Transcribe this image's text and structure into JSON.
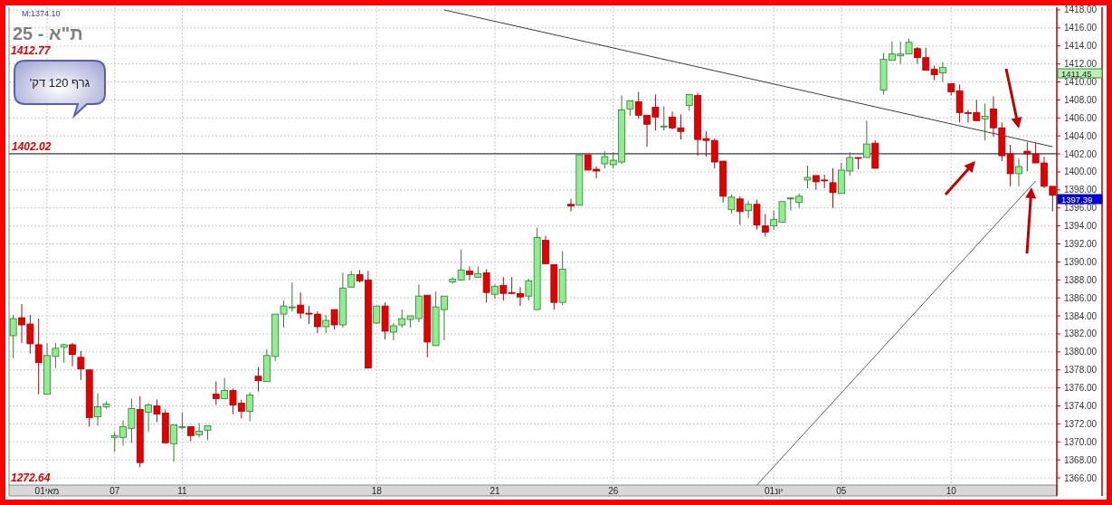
{
  "chart_data": {
    "type": "candlestick",
    "title": "ת\"א - 25",
    "categories": [
      null,
      null,
      null,
      null,
      "01מאי",
      null,
      null,
      null,
      null,
      null,
      null,
      null,
      "07",
      null,
      null,
      null,
      null,
      null,
      null,
      null,
      "11",
      null,
      null,
      null,
      null,
      null,
      null,
      null,
      null,
      null,
      null,
      null,
      null,
      null,
      null,
      null,
      null,
      null,
      null,
      null,
      null,
      null,
      null,
      "18",
      null,
      null,
      null,
      null,
      null,
      null,
      null,
      null,
      null,
      null,
      null,
      null,
      null,
      "21",
      null,
      null,
      null,
      null,
      null,
      null,
      null,
      null,
      null,
      null,
      null,
      null,
      null,
      "26",
      null,
      null,
      null,
      null,
      null,
      null,
      null,
      null,
      null,
      null,
      null,
      null,
      null,
      null,
      null,
      null,
      null,
      null,
      "01יונ",
      null,
      null,
      null,
      null,
      null,
      null,
      null,
      "05",
      null,
      null,
      null,
      null,
      null,
      null,
      null,
      null,
      null,
      null,
      null,
      null,
      "10",
      null,
      null,
      null,
      null,
      null,
      null,
      null,
      null,
      null,
      null,
      null,
      null
    ],
    "ohlc": [
      [
        1381.8,
        1384.1,
        1379.3,
        1383.7
      ],
      [
        1383.8,
        1385.3,
        1381.0,
        1383.0
      ],
      [
        1383.1,
        1384.1,
        1379.8,
        1380.9
      ],
      [
        1380.8,
        1383.7,
        1375.3,
        1378.8
      ],
      [
        1375.3,
        1381.0,
        1375.3,
        1379.6
      ],
      [
        1379.5,
        1381.0,
        1378.2,
        1380.4
      ],
      [
        1380.5,
        1380.9,
        1378.8,
        1380.8
      ],
      [
        1380.8,
        1381.0,
        1378.4,
        1379.7
      ],
      [
        1379.4,
        1380.1,
        1376.9,
        1378.1
      ],
      [
        1378.0,
        1378.0,
        1371.7,
        1372.7
      ],
      [
        1372.8,
        1375.4,
        1371.8,
        1373.9
      ],
      [
        1373.9,
        1374.5,
        1373.7,
        1374.2
      ],
      [
        1370.5,
        1371.1,
        1368.9,
        1370.7
      ],
      [
        1370.5,
        1372.4,
        1369.6,
        1371.7
      ],
      [
        1371.5,
        1374.8,
        1369.9,
        1373.7
      ],
      [
        1373.6,
        1375.1,
        1367.2,
        1367.7
      ],
      [
        1373.3,
        1374.3,
        1371.1,
        1374.1
      ],
      [
        1374.0,
        1374.7,
        1372.2,
        1373.1
      ],
      [
        1373.2,
        1373.6,
        1369.8,
        1369.9
      ],
      [
        1369.8,
        1371.9,
        1367.8,
        1371.9
      ],
      [
        1371.6,
        1373.3,
        1371.4,
        1371.7
      ],
      [
        1371.7,
        1371.7,
        1370.1,
        1370.7
      ],
      [
        1370.8,
        1372.1,
        1370.5,
        1371.2
      ],
      [
        1371.3,
        1371.8,
        1370.2,
        1371.8
      ],
      [
        1375.3,
        1376.7,
        1374.1,
        1374.8
      ],
      [
        1374.8,
        1377.1,
        1374.8,
        1375.7
      ],
      [
        1375.7,
        1375.9,
        1373.1,
        1374.1
      ],
      [
        1374.3,
        1374.7,
        1372.6,
        1373.4
      ],
      [
        1373.4,
        1375.5,
        1372.3,
        1375.2
      ],
      [
        1377.3,
        1378.3,
        1375.6,
        1376.8
      ],
      [
        1376.7,
        1380.3,
        1376.7,
        1379.6
      ],
      [
        1379.5,
        1384.2,
        1379.0,
        1384.2
      ],
      [
        1384.2,
        1385.7,
        1382.7,
        1385.1
      ],
      [
        1385.0,
        1387.7,
        1384.5,
        1385.0
      ],
      [
        1385.2,
        1386.6,
        1383.7,
        1384.3
      ],
      [
        1384.3,
        1385.1,
        1383.1,
        1384.2
      ],
      [
        1384.2,
        1384.5,
        1382.1,
        1382.8
      ],
      [
        1382.8,
        1384.1,
        1382.1,
        1383.5
      ],
      [
        1384.7,
        1384.7,
        1382.5,
        1383.0
      ],
      [
        1383.0,
        1388.8,
        1382.7,
        1387.1
      ],
      [
        1387.2,
        1389.0,
        1387.2,
        1388.6
      ],
      [
        1388.6,
        1389.1,
        1387.7,
        1387.9
      ],
      [
        1388.0,
        1389.0,
        1378.2,
        1378.2
      ],
      [
        1383.2,
        1385.1,
        1383.1,
        1385.1
      ],
      [
        1385.1,
        1385.5,
        1381.4,
        1382.3
      ],
      [
        1382.2,
        1383.2,
        1381.3,
        1382.9
      ],
      [
        1383.0,
        1384.7,
        1382.7,
        1383.7
      ],
      [
        1383.6,
        1384.0,
        1382.7,
        1384.0
      ],
      [
        1383.7,
        1387.5,
        1383.3,
        1386.2
      ],
      [
        1386.3,
        1386.3,
        1379.4,
        1381.1
      ],
      [
        1380.7,
        1386.7,
        1380.7,
        1385.0
      ],
      [
        1384.7,
        1386.2,
        1381.3,
        1386.2
      ],
      [
        1387.8,
        1388.3,
        1387.6,
        1388.1
      ],
      [
        1388.0,
        1391.4,
        1388.0,
        1389.1
      ],
      [
        1389.0,
        1389.5,
        1388.0,
        1388.6
      ],
      [
        1388.3,
        1389.5,
        1388.3,
        1388.7
      ],
      [
        1388.8,
        1389.2,
        1385.5,
        1386.6
      ],
      [
        1386.4,
        1387.5,
        1385.9,
        1387.3
      ],
      [
        1387.4,
        1388.3,
        1385.7,
        1386.5
      ],
      [
        1386.6,
        1388.3,
        1386.4,
        1386.5
      ],
      [
        1386.5,
        1387.2,
        1385.1,
        1386.1
      ],
      [
        1386.2,
        1388.1,
        1385.7,
        1387.9
      ],
      [
        1384.7,
        1393.8,
        1384.7,
        1392.7
      ],
      [
        1392.4,
        1392.9,
        1389.8,
        1389.8
      ],
      [
        1389.7,
        1389.7,
        1384.7,
        1385.5
      ],
      [
        1385.5,
        1391.2,
        1385.2,
        1389.2
      ],
      [
        1396.4,
        1397.0,
        1395.6,
        1396.2
      ],
      [
        1396.3,
        1401.9,
        1396.3,
        1401.9
      ],
      [
        1401.9,
        1401.9,
        1400.2,
        1400.2
      ],
      [
        1400.3,
        1400.6,
        1399.3,
        1400.1
      ],
      [
        1400.9,
        1402.3,
        1400.4,
        1401.7
      ],
      [
        1400.8,
        1402.2,
        1400.4,
        1401.3
      ],
      [
        1401.1,
        1408.5,
        1400.9,
        1406.9
      ],
      [
        1407.0,
        1407.9,
        1406.2,
        1407.9
      ],
      [
        1407.8,
        1408.9,
        1405.9,
        1406.3
      ],
      [
        1406.3,
        1406.3,
        1402.8,
        1405.3
      ],
      [
        1407.2,
        1408.6,
        1404.6,
        1406.1
      ],
      [
        1405.0,
        1407.3,
        1404.6,
        1405.1
      ],
      [
        1406.1,
        1406.7,
        1404.7,
        1404.9
      ],
      [
        1404.9,
        1406.4,
        1403.6,
        1404.5
      ],
      [
        1407.4,
        1408.6,
        1406.8,
        1408.6
      ],
      [
        1408.5,
        1408.8,
        1401.8,
        1403.6
      ],
      [
        1403.7,
        1404.5,
        1401.7,
        1403.5
      ],
      [
        1403.5,
        1403.7,
        1400.4,
        1401.1
      ],
      [
        1401.2,
        1401.2,
        1396.6,
        1397.3
      ],
      [
        1395.8,
        1397.5,
        1395.4,
        1397.2
      ],
      [
        1397.0,
        1397.3,
        1394.1,
        1395.6
      ],
      [
        1395.7,
        1396.8,
        1394.9,
        1396.4
      ],
      [
        1396.4,
        1396.9,
        1393.6,
        1394.1
      ],
      [
        1394.0,
        1395.3,
        1392.8,
        1393.3
      ],
      [
        1394.0,
        1395.7,
        1393.6,
        1394.7
      ],
      [
        1394.4,
        1396.7,
        1394.4,
        1396.7
      ],
      [
        1397.0,
        1397.2,
        1395.7,
        1397.1
      ],
      [
        1396.6,
        1397.6,
        1396.0,
        1397.3
      ],
      [
        1399.1,
        1400.7,
        1398.2,
        1399.4
      ],
      [
        1399.6,
        1399.6,
        1398.0,
        1398.9
      ],
      [
        1399.1,
        1399.7,
        1398.2,
        1399.0
      ],
      [
        1398.8,
        1400.4,
        1396.0,
        1397.7
      ],
      [
        1397.6,
        1401.0,
        1397.6,
        1400.2
      ],
      [
        1400.1,
        1402.2,
        1399.6,
        1401.6
      ],
      [
        1401.6,
        1401.6,
        1400.3,
        1401.5
      ],
      [
        1401.6,
        1405.7,
        1401.6,
        1403.1
      ],
      [
        1403.2,
        1403.5,
        1400.4,
        1400.4
      ],
      [
        1409.1,
        1413.2,
        1408.6,
        1412.5
      ],
      [
        1412.4,
        1414.5,
        1412.4,
        1413.1
      ],
      [
        1412.9,
        1414.5,
        1412.0,
        1413.1
      ],
      [
        1413.1,
        1414.8,
        1413.1,
        1414.4
      ],
      [
        1413.7,
        1413.9,
        1412.0,
        1412.7
      ],
      [
        1412.7,
        1413.8,
        1411.3,
        1411.3
      ],
      [
        1411.4,
        1411.8,
        1410.2,
        1410.8
      ],
      [
        1411.0,
        1412.2,
        1410.0,
        1411.6
      ],
      [
        1409.8,
        1409.8,
        1408.5,
        1408.9
      ],
      [
        1409.0,
        1409.7,
        1405.5,
        1406.6
      ],
      [
        1406.6,
        1406.9,
        1405.5,
        1406.5
      ],
      [
        1406.6,
        1408.0,
        1405.7,
        1405.7
      ],
      [
        1405.9,
        1407.6,
        1403.5,
        1406.2
      ],
      [
        1407.0,
        1408.4,
        1403.9,
        1404.9
      ],
      [
        1404.9,
        1405.5,
        1401.2,
        1401.8
      ],
      [
        1402.0,
        1403.0,
        1398.4,
        1399.8
      ],
      [
        1399.8,
        1401.5,
        1398.4,
        1400.6
      ],
      [
        1402.3,
        1403.3,
        1400.1,
        1402.0
      ],
      [
        1402.0,
        1403.2,
        1401.0,
        1401.0
      ],
      [
        1401.0,
        1401.7,
        1398.2,
        1398.4
      ],
      [
        1398.4,
        1398.4,
        1395.6,
        1397.4
      ]
    ],
    "series": [
      {
        "type": "line",
        "values": [
          null,
          null,
          null,
          null,
          null,
          null,
          null,
          null,
          null,
          null,
          null,
          null,
          null,
          null,
          null,
          null,
          null,
          null,
          null,
          null,
          null,
          null,
          null,
          null,
          null,
          null,
          null,
          null,
          null,
          null,
          null,
          null,
          null,
          null,
          null,
          null,
          null,
          null,
          null,
          null,
          null,
          null,
          null,
          null,
          null,
          null,
          null,
          null,
          null,
          null,
          null,
          1418.0,
          null,
          null,
          null,
          null,
          null,
          null,
          null,
          null,
          null,
          null,
          null,
          null,
          null,
          null,
          null,
          null,
          null,
          null,
          null,
          null,
          null,
          null,
          null,
          null,
          null,
          null,
          null,
          null,
          null,
          null,
          null,
          null,
          null,
          null,
          null,
          null,
          null,
          null,
          null,
          null,
          null,
          null,
          null,
          null,
          null,
          null,
          null,
          null,
          null,
          null,
          null,
          null,
          null,
          null,
          null,
          null,
          null,
          null,
          null,
          null,
          null,
          null,
          null,
          null,
          null,
          null,
          null,
          null,
          null,
          null,
          null,
          1402.8
        ],
        "color": "#3c3c3c"
      },
      {
        "type": "line",
        "values": [
          null,
          null,
          null,
          null,
          null,
          null,
          null,
          null,
          null,
          null,
          null,
          null,
          null,
          null,
          null,
          null,
          null,
          null,
          null,
          null,
          null,
          null,
          null,
          null,
          null,
          null,
          null,
          null,
          null,
          null,
          null,
          null,
          null,
          null,
          null,
          null,
          null,
          null,
          null,
          null,
          null,
          null,
          null,
          null,
          null,
          null,
          null,
          null,
          null,
          null,
          null,
          null,
          null,
          null,
          null,
          null,
          null,
          null,
          null,
          null,
          null,
          null,
          null,
          null,
          null,
          null,
          null,
          null,
          null,
          null,
          null,
          null,
          null,
          null,
          null,
          null,
          null,
          null,
          null,
          null,
          null,
          null,
          null,
          null,
          null,
          null,
          null,
          null,
          1365.2,
          null,
          null,
          null,
          null,
          null,
          null,
          null,
          null,
          null,
          null,
          null,
          null,
          null,
          null,
          null,
          null,
          null,
          null,
          null,
          null,
          null,
          null,
          null,
          null,
          null,
          null,
          null,
          null,
          null,
          null,
          null,
          null,
          1399.0,
          null,
          null
        ],
        "color": "#5a5a5a"
      }
    ],
    "ref_lines": [
      {
        "axis": "y",
        "value": 1402.02,
        "label": "1402.02",
        "color": "#404040"
      }
    ],
    "annotations": [
      "M:1374.10",
      "1412.77",
      "1272.64",
      "גרף 120 דק'",
      "1411.45",
      "1397.39"
    ],
    "ylim": [
      1365.2,
      1418.3
    ],
    "yticks": [
      {
        "value": 1366,
        "label": "1366.00"
      },
      {
        "value": 1368,
        "label": "1368.00"
      },
      {
        "value": 1370,
        "label": "1370.00"
      },
      {
        "value": 1372,
        "label": "1372.00"
      },
      {
        "value": 1374,
        "label": "1374.00"
      },
      {
        "value": 1376,
        "label": "1376.00"
      },
      {
        "value": 1378,
        "label": "1378.00"
      },
      {
        "value": 1380,
        "label": "1380.00"
      },
      {
        "value": 1382,
        "label": "1382.00"
      },
      {
        "value": 1384,
        "label": "1384.00"
      },
      {
        "value": 1386,
        "label": "1386.00"
      },
      {
        "value": 1388,
        "label": "1388.00"
      },
      {
        "value": 1390,
        "label": "1390.00"
      },
      {
        "value": 1392,
        "label": "1392.00"
      },
      {
        "value": 1394,
        "label": "1394.00"
      },
      {
        "value": 1396,
        "label": "1396.00"
      },
      {
        "value": 1398,
        "label": "1398.00"
      },
      {
        "value": 1400,
        "label": "1400.00"
      },
      {
        "value": 1402,
        "label": "1402.00"
      },
      {
        "value": 1404,
        "label": "1404.00"
      },
      {
        "value": 1406,
        "label": "1406.00"
      },
      {
        "value": 1408,
        "label": "1408.00"
      },
      {
        "value": 1410,
        "label": "1410.00"
      },
      {
        "value": 1412,
        "label": "1412.00"
      },
      {
        "value": 1414,
        "label": "1414.00"
      },
      {
        "value": 1416,
        "label": "1416.00"
      },
      {
        "value": 1418,
        "label": "1418.00"
      }
    ],
    "grid": true
  }
}
